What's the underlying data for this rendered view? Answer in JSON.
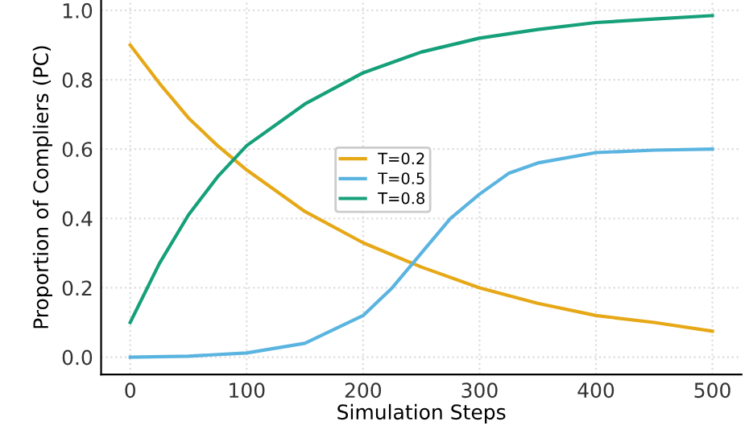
{
  "chart_data": {
    "type": "line",
    "xlabel": "Simulation Steps",
    "ylabel": "Proportion of Compliers (PC)",
    "xlim": [
      -25,
      525
    ],
    "ylim": [
      -0.05,
      1.03
    ],
    "xticks": [
      0,
      100,
      200,
      300,
      400,
      500
    ],
    "yticks": [
      {
        "value": 0,
        "label": "0.0"
      },
      {
        "value": 0.2,
        "label": "0.2"
      },
      {
        "value": 0.4,
        "label": "0.4"
      },
      {
        "value": 0.6,
        "label": "0.6"
      },
      {
        "value": 0.8,
        "label": "0.8"
      },
      {
        "value": 1.0,
        "label": "1.0"
      }
    ],
    "grid": true,
    "legend": "center",
    "series": [
      {
        "name": "T=0.2",
        "color": "#e6a817",
        "x": [
          0,
          25,
          50,
          75,
          100,
          150,
          200,
          250,
          300,
          350,
          400,
          450,
          500
        ],
        "values": [
          0.9,
          0.79,
          0.69,
          0.61,
          0.54,
          0.42,
          0.33,
          0.26,
          0.2,
          0.155,
          0.12,
          0.1,
          0.075
        ]
      },
      {
        "name": "T=0.5",
        "color": "#5ab4e0",
        "x": [
          0,
          50,
          100,
          150,
          200,
          225,
          250,
          275,
          300,
          325,
          350,
          400,
          450,
          500
        ],
        "values": [
          0.0,
          0.003,
          0.012,
          0.04,
          0.12,
          0.2,
          0.3,
          0.4,
          0.47,
          0.53,
          0.56,
          0.59,
          0.597,
          0.6
        ]
      },
      {
        "name": "T=0.8",
        "color": "#15a07a",
        "x": [
          0,
          25,
          50,
          75,
          100,
          150,
          200,
          250,
          300,
          350,
          400,
          450,
          500
        ],
        "values": [
          0.1,
          0.27,
          0.41,
          0.52,
          0.61,
          0.73,
          0.82,
          0.88,
          0.92,
          0.945,
          0.965,
          0.975,
          0.985
        ]
      }
    ]
  }
}
